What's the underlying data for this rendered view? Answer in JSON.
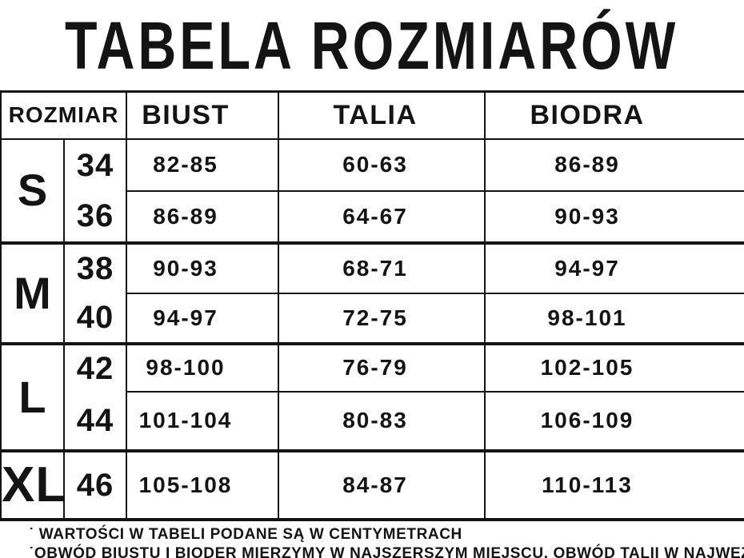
{
  "page": {
    "title": "TABELA ROZMIARÓW"
  },
  "colors": {
    "ink": "#141414",
    "background": "#ffffff"
  },
  "table": {
    "headers": {
      "size": "ROZMIAR",
      "bust": "BIUST",
      "waist": "TALIA",
      "hips": "BIODRA"
    },
    "groups": [
      {
        "label": "S",
        "rows": [
          {
            "size": "34",
            "bust": "82-85",
            "waist": "60-63",
            "hips": "86-89"
          },
          {
            "size": "36",
            "bust": "86-89",
            "waist": "64-67",
            "hips": "90-93"
          }
        ]
      },
      {
        "label": "M",
        "rows": [
          {
            "size": "38",
            "bust": "90-93",
            "waist": "68-71",
            "hips": "94-97"
          },
          {
            "size": "40",
            "bust": "94-97",
            "waist": "72-75",
            "hips": "98-101"
          }
        ]
      },
      {
        "label": "L",
        "rows": [
          {
            "size": "42",
            "bust": "98-100",
            "waist": "76-79",
            "hips": "102-105"
          },
          {
            "size": "44",
            "bust": "101-104",
            "waist": "80-83",
            "hips": "106-109"
          }
        ]
      },
      {
        "label": "XL",
        "rows": [
          {
            "size": "46",
            "bust": "105-108",
            "waist": "84-87",
            "hips": "110-113"
          }
        ]
      }
    ]
  },
  "footnotes": {
    "line1": "˙ WARTOŚCI W TABELI PODANE SĄ W CENTYMETRACH",
    "line2": "˙OBWÓD BIUSTU I BIODER MIERZYMY W NAJSZERSZYM MIEJSCU. OBWÓD TALII W NAJWĘŻSZYM"
  }
}
